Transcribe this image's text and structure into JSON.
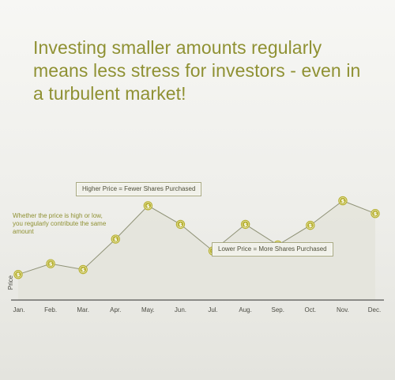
{
  "headline": "Investing smaller amounts regularly means less stress for investors - even in a turbulent market!",
  "note": "Whether the price is high or low, you regularly contribute the same amount",
  "callouts": {
    "higher": "Higher Price = Fewer Shares Purchased",
    "lower": "Lower Price = More Shares Purchased"
  },
  "chart_data": {
    "type": "line",
    "categories": [
      "Jan.",
      "Feb.",
      "Mar.",
      "Apr.",
      "May.",
      "Jun.",
      "Jul.",
      "Aug.",
      "Sep.",
      "Oct.",
      "Nov.",
      "Dec."
    ],
    "series": [
      {
        "values": [
          2.6,
          3.7,
          3.1,
          6.2,
          9.6,
          7.7,
          5.0,
          7.7,
          5.6,
          7.6,
          10.1,
          8.8
        ],
        "marker": "$"
      }
    ],
    "xlabel": "",
    "ylabel": "Price",
    "ylim": [
      0,
      12
    ],
    "colors": {
      "line": "#8f9276",
      "marker": "#b7b131",
      "area": "#e5e5dc",
      "axis": "#2f2f2f"
    },
    "grid": false
  }
}
